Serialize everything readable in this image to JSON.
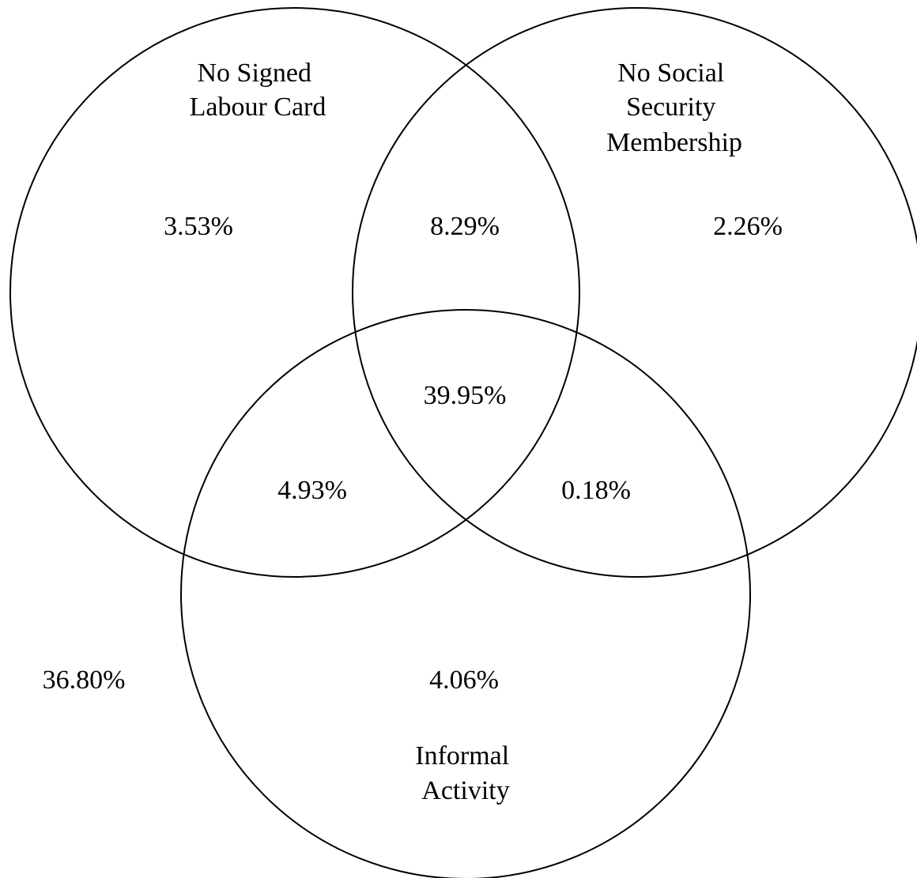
{
  "diagram": {
    "type": "venn-3",
    "sets": [
      {
        "id": "labour",
        "label_lines": [
          "No Signed",
          "Labour Card"
        ]
      },
      {
        "id": "social",
        "label_lines": [
          "No Social",
          "Security",
          "Membership"
        ]
      },
      {
        "id": "informal",
        "label_lines": [
          "Informal",
          "Activity"
        ]
      }
    ],
    "regions": {
      "labour_only": "3.53%",
      "labour_social": "8.29%",
      "social_only": "2.26%",
      "all_three": "39.95%",
      "labour_informal": "4.93%",
      "social_informal": "0.18%",
      "informal_only": "4.06%",
      "outside": "36.80%"
    },
    "colors": {
      "stroke": "#000000",
      "fill": "none",
      "text": "#000000"
    }
  }
}
